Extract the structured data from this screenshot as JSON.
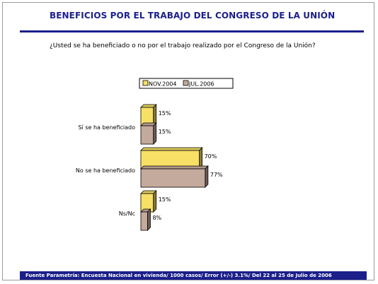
{
  "header": {
    "title": "BENEFICIOS POR EL TRABAJO DEL CONGRESO DE LA UNIÓN",
    "question": "¿Usted se ha beneficiado o no por el trabajo realizado por el Congreso de la Unión?"
  },
  "footer": {
    "source": "Fuente Parametría: Encuesta Nacional en vivienda/ 1000 casos/ Error (+/-) 3.1%/ Del 22 al 25 de Julio de 2006"
  },
  "colors": {
    "accent": "#1b1f8a",
    "series_nov2004": "#f7e065",
    "series_jul2006": "#c4aa9c"
  },
  "chart_data": {
    "type": "bar",
    "orientation": "horizontal",
    "categories": [
      "Sí se ha beneficiado",
      "No se ha beneficiado",
      "Ns/Nc"
    ],
    "series": [
      {
        "name": "NOV.2004",
        "values": [
          15,
          70,
          15
        ],
        "labels": [
          "15%",
          "70%",
          "15%"
        ]
      },
      {
        "name": "JUL.2006",
        "values": [
          15,
          77,
          8
        ],
        "labels": [
          "15%",
          "77%",
          "8%"
        ]
      }
    ],
    "legend_position": "top",
    "xlim": [
      0,
      100
    ],
    "grid": false
  }
}
